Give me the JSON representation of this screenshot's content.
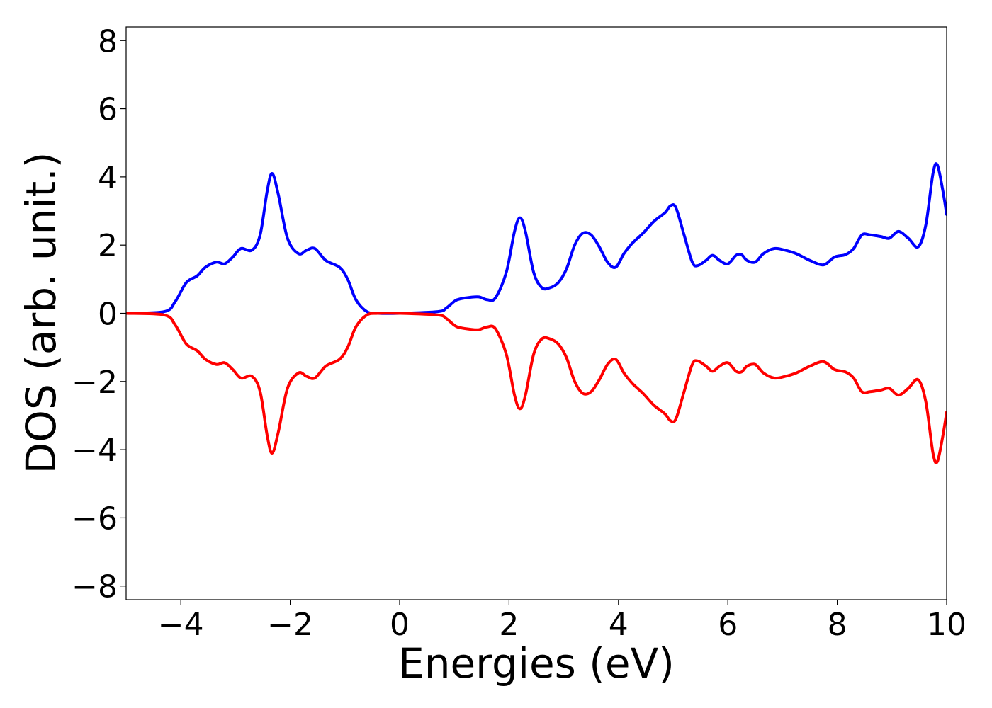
{
  "chart_data": {
    "type": "line",
    "title": "",
    "xlabel": "Energies (eV)",
    "ylabel": "DOS (arb. unit.)",
    "xlim": [
      -5,
      10
    ],
    "ylim": [
      -8.4,
      8.4
    ],
    "xticks": [
      -4,
      -2,
      0,
      2,
      4,
      6,
      8,
      10
    ],
    "xtick_labels": [
      "−4",
      "−2",
      "0",
      "2",
      "4",
      "6",
      "8",
      "10"
    ],
    "yticks": [
      8,
      6,
      4,
      2,
      0,
      -2,
      -4,
      -6,
      -8
    ],
    "ytick_labels": [
      "8",
      "6",
      "4",
      "2",
      "0",
      "−2",
      "−4",
      "−6",
      "−8"
    ],
    "grid": false,
    "legend": "none",
    "series": [
      {
        "color": "#0000ff",
        "x": [
          -5.0,
          -4.3,
          -4.1,
          -3.9,
          -3.7,
          -3.55,
          -3.35,
          -3.2,
          -3.05,
          -2.9,
          -2.7,
          -2.55,
          -2.42,
          -2.33,
          -2.22,
          -2.05,
          -1.85,
          -1.7,
          -1.55,
          -1.35,
          -1.1,
          -0.95,
          -0.8,
          -0.6,
          -0.4,
          0.0,
          0.7,
          0.85,
          1.0,
          1.1,
          1.3,
          1.45,
          1.6,
          1.75,
          1.95,
          2.1,
          2.2,
          2.3,
          2.45,
          2.6,
          2.75,
          2.9,
          3.05,
          3.2,
          3.35,
          3.5,
          3.65,
          3.8,
          3.95,
          4.1,
          4.25,
          4.45,
          4.65,
          4.85,
          4.95,
          5.05,
          5.2,
          5.35,
          5.45,
          5.6,
          5.72,
          5.85,
          6.0,
          6.15,
          6.25,
          6.35,
          6.5,
          6.65,
          6.85,
          7.05,
          7.25,
          7.5,
          7.75,
          7.95,
          8.15,
          8.3,
          8.45,
          8.6,
          8.8,
          8.95,
          9.12,
          9.3,
          9.48,
          9.62,
          9.75,
          9.83,
          9.93,
          10.0
        ],
        "y": [
          0.0,
          0.05,
          0.35,
          0.9,
          1.1,
          1.35,
          1.5,
          1.45,
          1.65,
          1.9,
          1.85,
          2.3,
          3.6,
          4.1,
          3.5,
          2.2,
          1.75,
          1.85,
          1.9,
          1.55,
          1.35,
          1.0,
          0.4,
          0.05,
          0.0,
          0.0,
          0.05,
          0.15,
          0.35,
          0.42,
          0.47,
          0.48,
          0.4,
          0.45,
          1.2,
          2.4,
          2.8,
          2.4,
          1.2,
          0.75,
          0.75,
          0.9,
          1.3,
          2.0,
          2.35,
          2.3,
          1.95,
          1.5,
          1.35,
          1.75,
          2.05,
          2.35,
          2.7,
          2.95,
          3.15,
          3.1,
          2.3,
          1.5,
          1.4,
          1.55,
          1.7,
          1.55,
          1.45,
          1.7,
          1.72,
          1.55,
          1.5,
          1.75,
          1.9,
          1.85,
          1.75,
          1.55,
          1.42,
          1.65,
          1.72,
          1.9,
          2.3,
          2.3,
          2.25,
          2.2,
          2.4,
          2.2,
          1.95,
          2.6,
          4.1,
          4.35,
          3.6,
          2.9
        ]
      },
      {
        "color": "#ff0000",
        "x": [
          -5.0,
          -4.3,
          -4.1,
          -3.9,
          -3.7,
          -3.55,
          -3.35,
          -3.2,
          -3.05,
          -2.9,
          -2.7,
          -2.55,
          -2.42,
          -2.33,
          -2.22,
          -2.05,
          -1.85,
          -1.7,
          -1.55,
          -1.35,
          -1.1,
          -0.95,
          -0.8,
          -0.6,
          -0.4,
          0.0,
          0.7,
          0.85,
          1.0,
          1.1,
          1.3,
          1.45,
          1.6,
          1.75,
          1.95,
          2.1,
          2.2,
          2.3,
          2.45,
          2.6,
          2.75,
          2.9,
          3.05,
          3.2,
          3.35,
          3.5,
          3.65,
          3.8,
          3.95,
          4.1,
          4.25,
          4.45,
          4.65,
          4.85,
          4.95,
          5.05,
          5.2,
          5.35,
          5.45,
          5.6,
          5.72,
          5.85,
          6.0,
          6.15,
          6.25,
          6.35,
          6.5,
          6.65,
          6.85,
          7.05,
          7.25,
          7.5,
          7.75,
          7.95,
          8.15,
          8.3,
          8.45,
          8.6,
          8.8,
          8.95,
          9.12,
          9.3,
          9.48,
          9.62,
          9.75,
          9.83,
          9.93,
          10.0
        ],
        "y": [
          0.0,
          -0.05,
          -0.35,
          -0.9,
          -1.1,
          -1.35,
          -1.5,
          -1.45,
          -1.65,
          -1.9,
          -1.85,
          -2.3,
          -3.6,
          -4.1,
          -3.5,
          -2.2,
          -1.75,
          -1.85,
          -1.9,
          -1.55,
          -1.35,
          -1.0,
          -0.4,
          -0.05,
          0.0,
          0.0,
          -0.05,
          -0.15,
          -0.35,
          -0.42,
          -0.47,
          -0.48,
          -0.4,
          -0.45,
          -1.2,
          -2.4,
          -2.8,
          -2.4,
          -1.2,
          -0.75,
          -0.75,
          -0.9,
          -1.3,
          -2.0,
          -2.35,
          -2.3,
          -1.95,
          -1.5,
          -1.35,
          -1.75,
          -2.05,
          -2.35,
          -2.7,
          -2.95,
          -3.15,
          -3.1,
          -2.3,
          -1.5,
          -1.4,
          -1.55,
          -1.7,
          -1.55,
          -1.45,
          -1.7,
          -1.72,
          -1.55,
          -1.5,
          -1.75,
          -1.9,
          -1.85,
          -1.75,
          -1.55,
          -1.42,
          -1.65,
          -1.72,
          -1.9,
          -2.3,
          -2.3,
          -2.25,
          -2.2,
          -2.4,
          -2.2,
          -1.95,
          -2.6,
          -4.1,
          -4.35,
          -3.6,
          -2.9
        ]
      }
    ]
  }
}
